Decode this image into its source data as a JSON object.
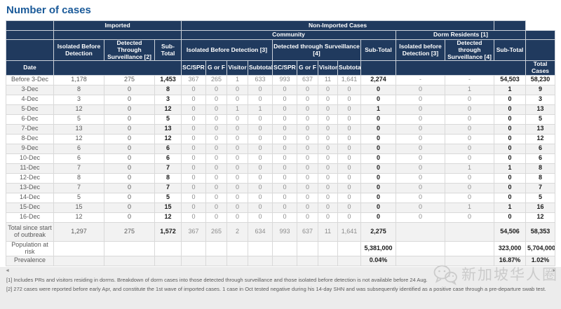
{
  "page": {
    "title": "Number of cases"
  },
  "colors": {
    "title": "#1A5A99",
    "header_bg": "#203A5E",
    "stripe": "#F2F2F2",
    "border": "#D9D9D9"
  },
  "table": {
    "header": {
      "date": "Date",
      "imported": {
        "label": "Imported",
        "cols": [
          "Isolated Before Detection",
          "Detected Through Surveillance [2]",
          "Sub-Total"
        ]
      },
      "non_imported": {
        "label": "Non-Imported Cases",
        "community": {
          "label": "Community",
          "isolated": {
            "label": "Isolated Before Detection [3]",
            "cols": [
              "SC/SPR",
              "G or F",
              "Visitor",
              "Subtotal"
            ]
          },
          "detected": {
            "label": "Detected through Surveillance [4]",
            "cols": [
              "SC/SPR",
              "G or F",
              "Visitor",
              "Subtotal"
            ]
          },
          "subtotal": "Sub-Total"
        },
        "dorm": {
          "label": "Dorm Residents [1]",
          "cols": [
            "Isolated before Detection [3]",
            "Detected through Surveillance [4]",
            "Sub-Total"
          ]
        }
      },
      "total": "Total Cases"
    },
    "rows": [
      [
        "Before 3-Dec",
        "1,178",
        "275",
        "1,453",
        "367",
        "265",
        "1",
        "633",
        "993",
        "637",
        "11",
        "1,641",
        "2,274",
        "-",
        "-",
        "54,503",
        "58,230"
      ],
      [
        "3-Dec",
        "8",
        "0",
        "8",
        "0",
        "0",
        "0",
        "0",
        "0",
        "0",
        "0",
        "0",
        "0",
        "0",
        "1",
        "1",
        "9"
      ],
      [
        "4-Dec",
        "3",
        "0",
        "3",
        "0",
        "0",
        "0",
        "0",
        "0",
        "0",
        "0",
        "0",
        "0",
        "0",
        "0",
        "0",
        "3"
      ],
      [
        "5-Dec",
        "12",
        "0",
        "12",
        "0",
        "0",
        "1",
        "1",
        "0",
        "0",
        "0",
        "0",
        "1",
        "0",
        "0",
        "0",
        "13"
      ],
      [
        "6-Dec",
        "5",
        "0",
        "5",
        "0",
        "0",
        "0",
        "0",
        "0",
        "0",
        "0",
        "0",
        "0",
        "0",
        "0",
        "0",
        "5"
      ],
      [
        "7-Dec",
        "13",
        "0",
        "13",
        "0",
        "0",
        "0",
        "0",
        "0",
        "0",
        "0",
        "0",
        "0",
        "0",
        "0",
        "0",
        "13"
      ],
      [
        "8-Dec",
        "12",
        "0",
        "12",
        "0",
        "0",
        "0",
        "0",
        "0",
        "0",
        "0",
        "0",
        "0",
        "0",
        "0",
        "0",
        "12"
      ],
      [
        "9-Dec",
        "6",
        "0",
        "6",
        "0",
        "0",
        "0",
        "0",
        "0",
        "0",
        "0",
        "0",
        "0",
        "0",
        "0",
        "0",
        "6"
      ],
      [
        "10-Dec",
        "6",
        "0",
        "6",
        "0",
        "0",
        "0",
        "0",
        "0",
        "0",
        "0",
        "0",
        "0",
        "0",
        "0",
        "0",
        "6"
      ],
      [
        "11-Dec",
        "7",
        "0",
        "7",
        "0",
        "0",
        "0",
        "0",
        "0",
        "0",
        "0",
        "0",
        "0",
        "0",
        "1",
        "1",
        "8"
      ],
      [
        "12-Dec",
        "8",
        "0",
        "8",
        "0",
        "0",
        "0",
        "0",
        "0",
        "0",
        "0",
        "0",
        "0",
        "0",
        "0",
        "0",
        "8"
      ],
      [
        "13-Dec",
        "7",
        "0",
        "7",
        "0",
        "0",
        "0",
        "0",
        "0",
        "0",
        "0",
        "0",
        "0",
        "0",
        "0",
        "0",
        "7"
      ],
      [
        "14-Dec",
        "5",
        "0",
        "5",
        "0",
        "0",
        "0",
        "0",
        "0",
        "0",
        "0",
        "0",
        "0",
        "0",
        "0",
        "0",
        "5"
      ],
      [
        "15-Dec",
        "15",
        "0",
        "15",
        "0",
        "0",
        "0",
        "0",
        "0",
        "0",
        "0",
        "0",
        "0",
        "0",
        "1",
        "1",
        "16"
      ],
      [
        "16-Dec",
        "12",
        "0",
        "12",
        "0",
        "0",
        "0",
        "0",
        "0",
        "0",
        "0",
        "0",
        "0",
        "0",
        "0",
        "0",
        "12"
      ]
    ],
    "summary_rows": [
      {
        "kind": "total",
        "cells": [
          "Total since start of outbreak",
          "1,297",
          "275",
          "1,572",
          "367",
          "265",
          "2",
          "634",
          "993",
          "637",
          "11",
          "1,641",
          "2,275",
          "",
          "",
          "54,506",
          "58,353"
        ]
      },
      {
        "kind": "population",
        "cells": [
          "Population at risk",
          "",
          "",
          "",
          "",
          "",
          "",
          "",
          "",
          "",
          "",
          "",
          "5,381,000",
          "",
          "",
          "323,000",
          "5,704,000"
        ]
      },
      {
        "kind": "prevalence",
        "cells": [
          "Prevalence",
          "",
          "",
          "",
          "",
          "",
          "",
          "",
          "",
          "",
          "",
          "",
          "0.04%",
          "",
          "",
          "16.87%",
          "1.02%"
        ]
      }
    ]
  },
  "scrollbar": {
    "left_arrow": "◄",
    "right_arrow": "►"
  },
  "footnotes": [
    "[1] Includes PRs and visitors residing in dorms. Breakdown of dorm cases into those detected through surveillance and those isolated before detection is not available before 24 Aug.",
    "[2] 272 cases were reported before early Apr, and constitute the 1st wave of imported cases. 1 case in Oct tested negative during his 14-day SHN and was subsequently identified as a positive case through a pre-departure swab test."
  ],
  "watermark": {
    "text": "新加坡华人圈"
  }
}
